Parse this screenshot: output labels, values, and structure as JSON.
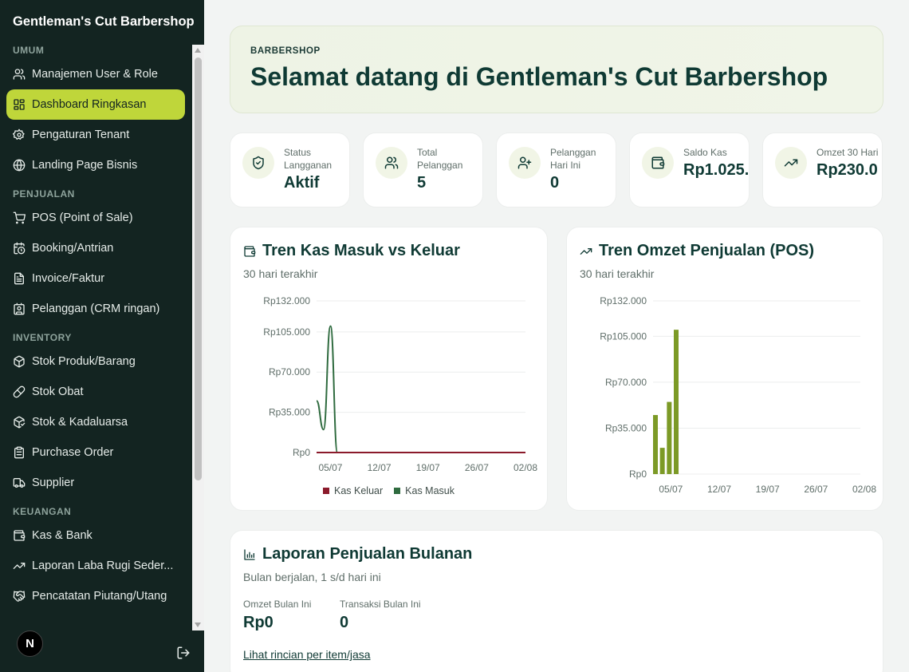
{
  "app": {
    "brand": "Gentleman's Cut Barbershop",
    "avatar_letter": "N"
  },
  "sidebar": {
    "sections": [
      {
        "title": "UMUM",
        "items": [
          {
            "label": "Manajemen User & Role",
            "icon": "users-icon"
          },
          {
            "label": "Dashboard Ringkasan",
            "icon": "grid-icon",
            "active": true
          },
          {
            "label": "Pengaturan Tenant",
            "icon": "gear-icon"
          },
          {
            "label": "Landing Page Bisnis",
            "icon": "globe-icon"
          }
        ]
      },
      {
        "title": "PENJUALAN",
        "items": [
          {
            "label": "POS (Point of Sale)",
            "icon": "cart-icon"
          },
          {
            "label": "Booking/Antrian",
            "icon": "calendar-clock-icon"
          },
          {
            "label": "Invoice/Faktur",
            "icon": "file-text-icon"
          },
          {
            "label": "Pelanggan (CRM ringan)",
            "icon": "contact-icon"
          }
        ]
      },
      {
        "title": "INVENTORY",
        "items": [
          {
            "label": "Stok Produk/Barang",
            "icon": "package-icon"
          },
          {
            "label": "Stok Obat",
            "icon": "pill-icon"
          },
          {
            "label": "Stok & Kadaluarsa",
            "icon": "package-check-icon"
          },
          {
            "label": "Purchase Order",
            "icon": "clipboard-icon"
          },
          {
            "label": "Supplier",
            "icon": "truck-icon"
          }
        ]
      },
      {
        "title": "KEUANGAN",
        "items": [
          {
            "label": "Kas & Bank",
            "icon": "wallet-icon"
          },
          {
            "label": "Laporan Laba Rugi Seder...",
            "icon": "trending-up-icon"
          },
          {
            "label": "Pencatatan Piutang/Utang",
            "icon": "handshake-icon"
          }
        ]
      }
    ]
  },
  "hero": {
    "kicker": "BARBERSHOP",
    "title": "Selamat datang di Gentleman's Cut Barbershop"
  },
  "stats": [
    {
      "label_lines": [
        "Status",
        "Langganan"
      ],
      "value": "Aktif",
      "icon": "shield-check-icon"
    },
    {
      "label_lines": [
        "Total",
        "Pelanggan"
      ],
      "value": "5",
      "icon": "users-icon"
    },
    {
      "label_lines": [
        "Pelanggan",
        "Hari Ini"
      ],
      "value": "0",
      "icon": "user-plus-icon"
    },
    {
      "label_lines": [
        "Saldo Kas"
      ],
      "value": "Rp1.025.",
      "icon": "wallet-icon"
    },
    {
      "label_lines": [
        "Omzet 30 Hari"
      ],
      "value": "Rp230.0",
      "icon": "trending-up-icon"
    }
  ],
  "cash_card": {
    "title": "Tren Kas Masuk vs Keluar",
    "subtitle": "30 hari terakhir",
    "legend": [
      "Kas Keluar",
      "Kas Masuk"
    ]
  },
  "sales_card": {
    "title": "Tren Omzet Penjualan (POS)",
    "subtitle": "30 hari terakhir"
  },
  "report_card": {
    "title": "Laporan Penjualan Bulanan",
    "subtitle": "Bulan berjalan, 1 s/d hari ini",
    "omzet_label": "Omzet Bulan Ini",
    "omzet_value": "Rp0",
    "trans_label": "Transaksi Bulan Ini",
    "trans_value": "0",
    "link": "Lihat rincian per item/jasa"
  },
  "colors": {
    "sidebar_bg": "#132421",
    "accent": "#bfd63a",
    "kas_keluar": "#8b1a2b",
    "kas_masuk": "#2f6b3f",
    "bar": "#7c9a26"
  },
  "chart_data": [
    {
      "type": "line",
      "title": "Tren Kas Masuk vs Keluar",
      "x_ticks": [
        "05/07",
        "12/07",
        "19/07",
        "26/07",
        "02/08"
      ],
      "y_ticks": [
        "Rp0",
        "Rp35.000",
        "Rp70.000",
        "Rp105.000",
        "Rp132.000"
      ],
      "y_tick_values": [
        0,
        35000,
        70000,
        105000,
        132000
      ],
      "ylim": [
        0,
        132000
      ],
      "x_dates": [
        "03/07",
        "04/07",
        "05/07",
        "06/07",
        "07/07",
        "08/07",
        "09/07",
        "10/07",
        "11/07",
        "12/07",
        "13/07",
        "14/07",
        "15/07",
        "16/07",
        "17/07",
        "18/07",
        "19/07",
        "20/07",
        "21/07",
        "22/07",
        "23/07",
        "24/07",
        "25/07",
        "26/07",
        "27/07",
        "28/07",
        "29/07",
        "30/07",
        "31/07",
        "01/08",
        "02/08"
      ],
      "grid": true,
      "legend": "bottom",
      "series": [
        {
          "name": "Kas Keluar",
          "values": [
            0,
            0,
            0,
            0,
            0,
            0,
            0,
            0,
            0,
            0,
            0,
            0,
            0,
            0,
            0,
            0,
            0,
            0,
            0,
            0,
            0,
            0,
            0,
            0,
            0,
            0,
            0,
            0,
            0,
            0,
            0
          ]
        },
        {
          "name": "Kas Masuk",
          "values": [
            45000,
            20000,
            110000,
            0,
            0,
            0,
            0,
            0,
            0,
            0,
            0,
            0,
            0,
            0,
            0,
            0,
            0,
            0,
            0,
            0,
            0,
            0,
            0,
            0,
            0,
            0,
            0,
            0,
            0,
            0,
            0
          ]
        }
      ]
    },
    {
      "type": "bar",
      "title": "Tren Omzet Penjualan (POS)",
      "x_ticks": [
        "05/07",
        "12/07",
        "19/07",
        "26/07",
        "02/08"
      ],
      "y_ticks": [
        "Rp0",
        "Rp35.000",
        "Rp70.000",
        "Rp105.000",
        "Rp132.000"
      ],
      "y_tick_values": [
        0,
        35000,
        70000,
        105000,
        132000
      ],
      "ylim": [
        0,
        132000
      ],
      "grid": true,
      "categories": [
        "03/07",
        "04/07",
        "05/07",
        "06/07"
      ],
      "values": [
        45000,
        20000,
        55000,
        110000
      ]
    }
  ]
}
